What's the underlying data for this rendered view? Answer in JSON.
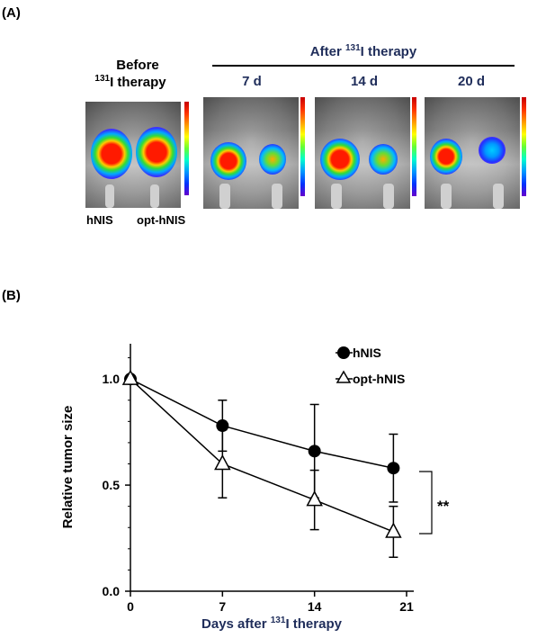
{
  "panel_a": {
    "label": "(A)",
    "before_line1": "Before",
    "before_line2_sup": "131",
    "before_line2_rest": "I therapy",
    "after_prefix": "After ",
    "after_sup": "131",
    "after_rest": "I therapy",
    "timepoints": [
      "7 d",
      "14 d",
      "20 d"
    ],
    "captions": [
      "hNIS",
      "opt-hNIS"
    ]
  },
  "panel_b": {
    "label": "(B)"
  },
  "chart_data": {
    "type": "line",
    "xlabel_prefix": "Days after ",
    "xlabel_sup": "131",
    "xlabel_rest": "I therapy",
    "ylabel": "Relative tumor size",
    "xlim": [
      0,
      21
    ],
    "ylim": [
      0.0,
      1.2
    ],
    "xticks": [
      0,
      7,
      14,
      21
    ],
    "xtick_labels": [
      "0",
      "7",
      "14",
      "21"
    ],
    "yticks": [
      0.0,
      0.5,
      1.0
    ],
    "ytick_labels": [
      "0.0",
      "0.5",
      "1.0"
    ],
    "series": [
      {
        "name": "hNIS",
        "marker": "filled-circle",
        "x": [
          0,
          7,
          14,
          20
        ],
        "y": [
          1.0,
          0.78,
          0.66,
          0.58
        ],
        "err": [
          0.0,
          0.12,
          0.22,
          0.16
        ]
      },
      {
        "name": "opt-hNIS",
        "marker": "open-triangle",
        "x": [
          0,
          7,
          14,
          20
        ],
        "y": [
          1.0,
          0.6,
          0.43,
          0.28
        ],
        "err": [
          0.0,
          0.16,
          0.14,
          0.12
        ]
      }
    ],
    "annotation": "**",
    "legend_position": "top-right"
  }
}
